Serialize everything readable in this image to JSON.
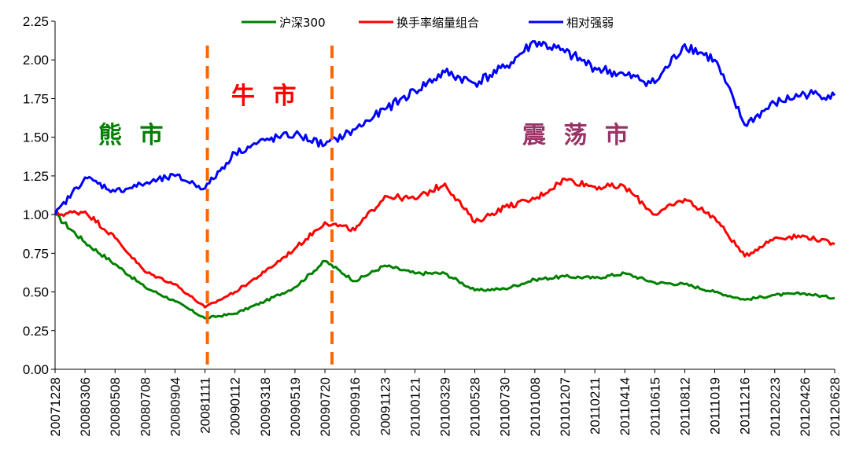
{
  "chart_data": {
    "type": "line",
    "title": "",
    "xlabel": "",
    "ylabel": "",
    "ylim": [
      0,
      2.25
    ],
    "y_ticks": [
      "0.00",
      "0.25",
      "0.50",
      "0.75",
      "1.00",
      "1.25",
      "1.50",
      "1.75",
      "2.00",
      "2.25"
    ],
    "grid": false,
    "legend_position": "top",
    "categories": [
      "20071228",
      "20080306",
      "20080508",
      "20080708",
      "20080904",
      "20081111",
      "20090112",
      "20090318",
      "20090519",
      "20090720",
      "20090916",
      "20091123",
      "20100121",
      "20100329",
      "20100528",
      "20100730",
      "20101008",
      "20101207",
      "20110211",
      "20110414",
      "20110615",
      "20110812",
      "20111019",
      "20111216",
      "20120223",
      "20120426",
      "20120628"
    ],
    "series": [
      {
        "name": "沪深300",
        "color": "#008000",
        "values": [
          1.0,
          0.82,
          0.68,
          0.53,
          0.44,
          0.33,
          0.36,
          0.44,
          0.53,
          0.7,
          0.57,
          0.67,
          0.62,
          0.62,
          0.51,
          0.52,
          0.58,
          0.6,
          0.59,
          0.62,
          0.56,
          0.55,
          0.5,
          0.45,
          0.48,
          0.49,
          0.46
        ]
      },
      {
        "name": "换手率缩量组合",
        "color": "#ff0000",
        "values": [
          1.0,
          1.02,
          0.85,
          0.63,
          0.55,
          0.4,
          0.5,
          0.63,
          0.78,
          0.95,
          0.9,
          1.12,
          1.1,
          1.2,
          0.95,
          1.05,
          1.1,
          1.23,
          1.18,
          1.18,
          1.0,
          1.1,
          0.98,
          0.73,
          0.85,
          0.86,
          0.81
        ]
      },
      {
        "name": "相对强弱",
        "color": "#0000ff",
        "values": [
          1.0,
          1.24,
          1.15,
          1.2,
          1.25,
          1.17,
          1.4,
          1.48,
          1.52,
          1.45,
          1.55,
          1.68,
          1.8,
          1.92,
          1.85,
          1.95,
          2.12,
          2.05,
          1.95,
          1.9,
          1.85,
          2.1,
          2.0,
          1.58,
          1.72,
          1.78,
          1.77
        ]
      }
    ],
    "phase_labels": [
      {
        "text": "熊 市",
        "color": "#008000"
      },
      {
        "text": "牛 市",
        "color": "#ff0000"
      },
      {
        "text": "震 荡 市",
        "color": "#993366"
      }
    ],
    "divider_color": "#ff6600",
    "divider_categories": [
      "20081111",
      "20090720"
    ]
  }
}
